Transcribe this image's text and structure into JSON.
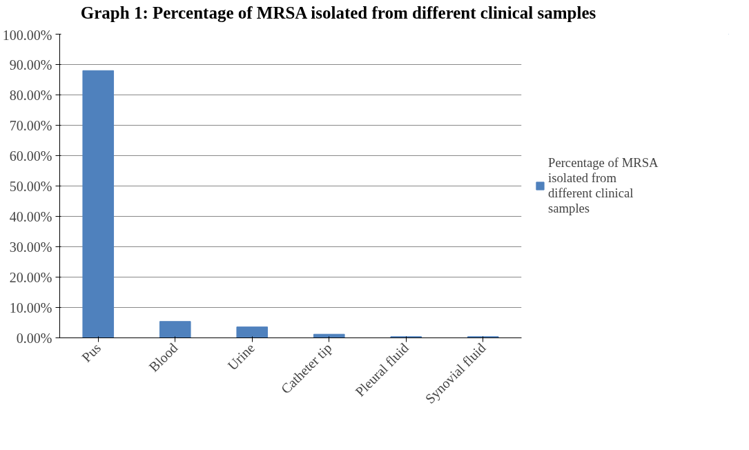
{
  "chart_data": {
    "type": "bar",
    "title": "Graph 1: Percentage of MRSA isolated from different clinical samples",
    "categories": [
      "Pus",
      "Blood",
      "Urine",
      "Catheter tip",
      "Pleural fluid",
      "Synovial fluid"
    ],
    "series": [
      {
        "name": "Percentage of MRSA isolated from different clinical samples",
        "color": "#4f81bd",
        "values": [
          88,
          5.4,
          3.6,
          1.2,
          0.4,
          0.4
        ]
      }
    ],
    "ylim": [
      0,
      100
    ],
    "yticks": [
      {
        "value": 0,
        "label": "0.00%"
      },
      {
        "value": 10,
        "label": "10.00%"
      },
      {
        "value": 20,
        "label": "20.00%"
      },
      {
        "value": 30,
        "label": "30.00%"
      },
      {
        "value": 40,
        "label": "40.00%"
      },
      {
        "value": 50,
        "label": "50.00%"
      },
      {
        "value": 60,
        "label": "60.00%"
      },
      {
        "value": 70,
        "label": "70.00%"
      },
      {
        "value": 80,
        "label": "80.00%"
      },
      {
        "value": 90,
        "label": "90.00%"
      },
      {
        "value": 100,
        "label": "100.00%"
      }
    ],
    "grid": "y",
    "legend": "right"
  }
}
